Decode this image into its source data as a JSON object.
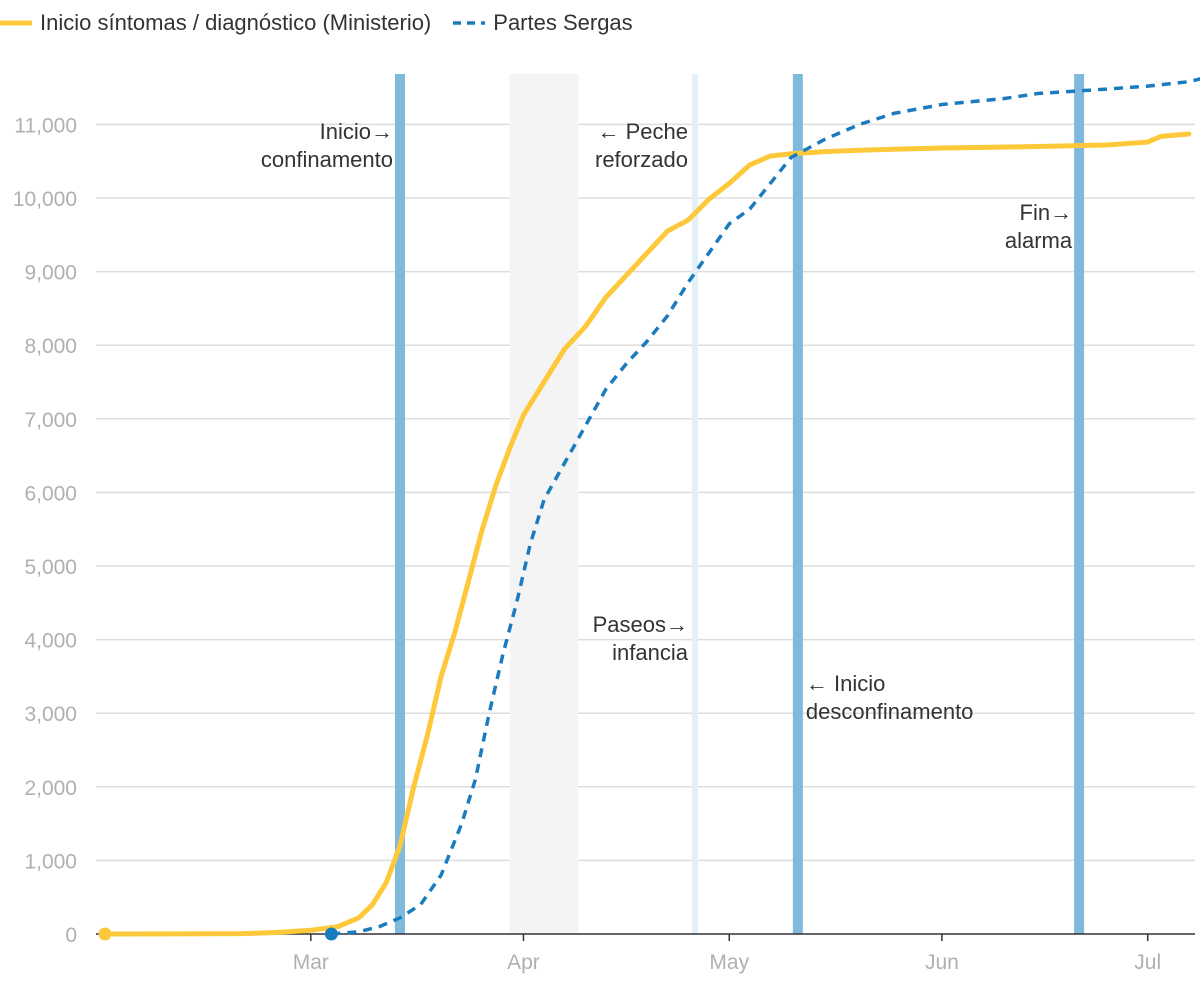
{
  "chart_data": {
    "type": "line",
    "title": "",
    "xlabel": "",
    "ylabel": "",
    "colors": {
      "series_ministerio": "#fdc93a",
      "series_sergas": "#1b7bbf",
      "event_line": "#7fbadc",
      "event_line_light": "#e3f0f8",
      "shade": "#f4f4f4",
      "grid": "#dddddd",
      "tick_text": "#b0b0b0",
      "annotation_text": "#333333"
    },
    "ylim": [
      0,
      11700
    ],
    "yticks": [
      0,
      1000,
      2000,
      3000,
      4000,
      5000,
      6000,
      7000,
      8000,
      9000,
      10000,
      11000
    ],
    "ytick_labels": [
      "0",
      "1,000",
      "2,000",
      "3,000",
      "4,000",
      "5,000",
      "6,000",
      "7,000",
      "8,000",
      "9,000",
      "10,000",
      "11,000"
    ],
    "xlim": [
      "2020-01-31",
      "2020-07-13"
    ],
    "xticks": [
      {
        "date": "2020-03-01",
        "label": "Mar"
      },
      {
        "date": "2020-04-01",
        "label": "Apr"
      },
      {
        "date": "2020-05-01",
        "label": "May"
      },
      {
        "date": "2020-06-01",
        "label": "Jun"
      },
      {
        "date": "2020-07-01",
        "label": "Jul"
      }
    ],
    "grid": true,
    "legend_position": "top-left",
    "series": [
      {
        "name": "Inicio síntomas / diagnóstico (Ministerio)",
        "style": "solid",
        "color": "#fdc93a",
        "points": [
          [
            "2020-02-01",
            0
          ],
          [
            "2020-02-10",
            1
          ],
          [
            "2020-02-20",
            5
          ],
          [
            "2020-02-25",
            20
          ],
          [
            "2020-03-01",
            50
          ],
          [
            "2020-03-05",
            100
          ],
          [
            "2020-03-08",
            220
          ],
          [
            "2020-03-10",
            400
          ],
          [
            "2020-03-12",
            700
          ],
          [
            "2020-03-14",
            1200
          ],
          [
            "2020-03-16",
            2000
          ],
          [
            "2020-03-18",
            2700
          ],
          [
            "2020-03-20",
            3500
          ],
          [
            "2020-03-22",
            4100
          ],
          [
            "2020-03-24",
            4800
          ],
          [
            "2020-03-26",
            5500
          ],
          [
            "2020-03-28",
            6100
          ],
          [
            "2020-03-30",
            6600
          ],
          [
            "2020-04-01",
            7050
          ],
          [
            "2020-04-04",
            7500
          ],
          [
            "2020-04-07",
            7950
          ],
          [
            "2020-04-10",
            8250
          ],
          [
            "2020-04-13",
            8650
          ],
          [
            "2020-04-16",
            8950
          ],
          [
            "2020-04-19",
            9250
          ],
          [
            "2020-04-22",
            9550
          ],
          [
            "2020-04-25",
            9700
          ],
          [
            "2020-04-28",
            9980
          ],
          [
            "2020-05-01",
            10200
          ],
          [
            "2020-05-04",
            10450
          ],
          [
            "2020-05-07",
            10570
          ],
          [
            "2020-05-10",
            10600
          ],
          [
            "2020-05-15",
            10630
          ],
          [
            "2020-05-20",
            10650
          ],
          [
            "2020-06-01",
            10680
          ],
          [
            "2020-06-15",
            10700
          ],
          [
            "2020-06-25",
            10720
          ],
          [
            "2020-07-01",
            10760
          ],
          [
            "2020-07-03",
            10840
          ],
          [
            "2020-07-07",
            10870
          ]
        ]
      },
      {
        "name": "Partes Sergas",
        "style": "dashed",
        "color": "#1b7bbf",
        "points": [
          [
            "2020-03-04",
            0
          ],
          [
            "2020-03-08",
            30
          ],
          [
            "2020-03-11",
            100
          ],
          [
            "2020-03-14",
            220
          ],
          [
            "2020-03-17",
            400
          ],
          [
            "2020-03-20",
            800
          ],
          [
            "2020-03-23",
            1500
          ],
          [
            "2020-03-25",
            2100
          ],
          [
            "2020-03-27",
            3000
          ],
          [
            "2020-03-29",
            3800
          ],
          [
            "2020-03-31",
            4500
          ],
          [
            "2020-04-02",
            5300
          ],
          [
            "2020-04-04",
            5900
          ],
          [
            "2020-04-07",
            6400
          ],
          [
            "2020-04-10",
            6900
          ],
          [
            "2020-04-13",
            7400
          ],
          [
            "2020-04-16",
            7750
          ],
          [
            "2020-04-19",
            8050
          ],
          [
            "2020-04-22",
            8400
          ],
          [
            "2020-04-25",
            8850
          ],
          [
            "2020-04-28",
            9250
          ],
          [
            "2020-05-01",
            9650
          ],
          [
            "2020-05-04",
            9850
          ],
          [
            "2020-05-07",
            10200
          ],
          [
            "2020-05-10",
            10550
          ],
          [
            "2020-05-15",
            10800
          ],
          [
            "2020-05-20",
            11000
          ],
          [
            "2020-05-25",
            11150
          ],
          [
            "2020-06-01",
            11270
          ],
          [
            "2020-06-10",
            11350
          ],
          [
            "2020-06-15",
            11420
          ],
          [
            "2020-06-25",
            11480
          ],
          [
            "2020-07-01",
            11520
          ],
          [
            "2020-07-07",
            11580
          ],
          [
            "2020-07-10",
            11650
          ]
        ]
      }
    ],
    "start_markers": [
      {
        "series": 0,
        "date": "2020-01-31",
        "value": 0
      },
      {
        "series": 1,
        "date": "2020-03-04",
        "value": 0
      }
    ],
    "event_lines": [
      {
        "id": "confinamento",
        "date": "2020-03-14",
        "style": "strong"
      },
      {
        "id": "paseos",
        "date": "2020-04-26",
        "style": "light"
      },
      {
        "id": "desconfinamento",
        "date": "2020-05-11",
        "style": "strong"
      },
      {
        "id": "fin-alarma",
        "date": "2020-06-21",
        "style": "strong"
      }
    ],
    "shaded_ranges": [
      {
        "id": "peche-reforzado",
        "start": "2020-03-30",
        "end": "2020-04-09"
      }
    ],
    "annotations": [
      {
        "id": "confinamento",
        "lines": [
          "Inicio→",
          "confinamento"
        ],
        "date": "2020-03-14",
        "value": 10800,
        "side": "left"
      },
      {
        "id": "peche",
        "lines": [
          "← Peche",
          "reforzado"
        ],
        "date": "2020-04-26",
        "value": 10800,
        "side": "left"
      },
      {
        "id": "paseos",
        "lines": [
          "Paseos→",
          "infancia"
        ],
        "date": "2020-04-26",
        "value": 4100,
        "side": "left"
      },
      {
        "id": "desconfinamento",
        "lines": [
          "← Inicio",
          "desconfinamento"
        ],
        "date": "2020-05-11",
        "value": 3300,
        "side": "right"
      },
      {
        "id": "fin-alarma",
        "lines": [
          "Fin→",
          "alarma"
        ],
        "date": "2020-06-21",
        "value": 9700,
        "side": "left"
      }
    ]
  }
}
